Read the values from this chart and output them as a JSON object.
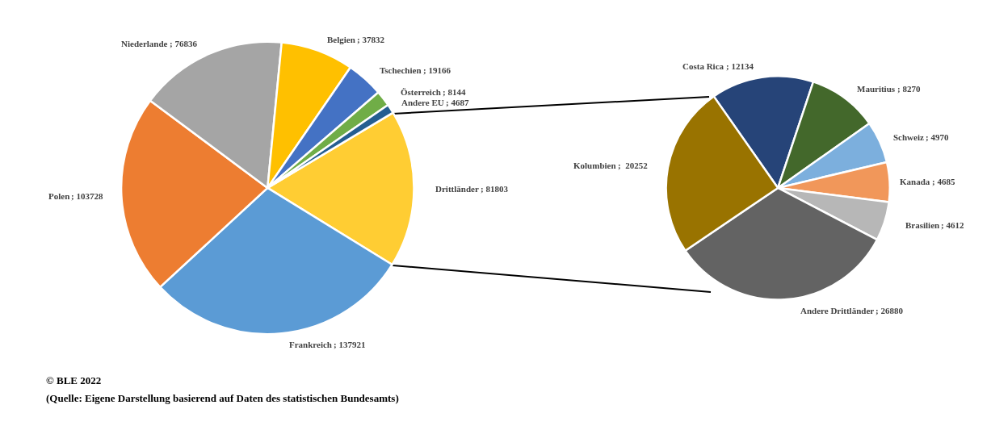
{
  "chart_data": [
    {
      "type": "pie",
      "categories": [
        "Drittländer",
        "Frankreich",
        "Polen",
        "Niederlande",
        "Belgien",
        "Tschechien",
        "Österreich",
        "Andere EU"
      ],
      "values": [
        81803,
        137921,
        103728,
        76836,
        37832,
        19166,
        8144,
        4687
      ],
      "colors": [
        "#ffcd33",
        "#5b9bd5",
        "#ed7d31",
        "#a5a5a5",
        "#ffc000",
        "#4472c4",
        "#70ad47",
        "#255e91"
      ],
      "value_labels": [
        "; 81803",
        "; 137921",
        "; 103728",
        "; 76836",
        "; 37832",
        "; 19166",
        "; 8144",
        "; 4687"
      ],
      "annotations": [
        "© BLE 2022",
        "(Quelle: Eigene Darstellung basierend auf Daten des statistischen Bundesamts)"
      ],
      "legend": false
    },
    {
      "type": "pie",
      "categories": [
        "Costa Rica",
        "Mauritius",
        "Schweiz",
        "Kanada",
        "Brasilien",
        "Andere Drittländer",
        "Kolumbien"
      ],
      "values": [
        12134,
        8270,
        4970,
        4685,
        4612,
        26880,
        20252
      ],
      "colors": [
        "#264478",
        "#43682b",
        "#7cafdd",
        "#f1975a",
        "#b7b7b7",
        "#636363",
        "#997300"
      ],
      "value_labels": [
        "; 12134",
        "; 8270",
        "; 4970",
        "; 4685",
        "; 4612",
        "; 26880",
        ";  20252"
      ],
      "legend": false
    }
  ]
}
